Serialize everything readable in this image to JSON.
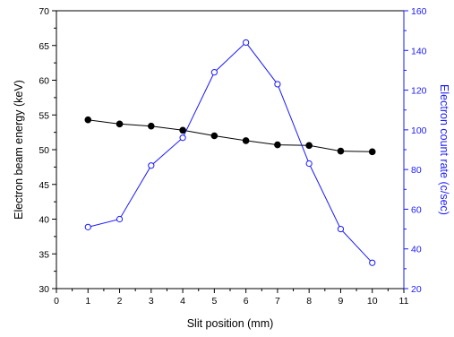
{
  "chart_data": {
    "type": "line",
    "xlabel": "Slit position (mm)",
    "ylabel_left": "Electron beam energy (keV)",
    "ylabel_right": "Electron count rate (c/sec)",
    "xlim": [
      0,
      11
    ],
    "ylim_left": [
      30,
      70
    ],
    "ylim_right": [
      20,
      160
    ],
    "x_ticks": [
      "0",
      "1",
      "2",
      "3",
      "4",
      "5",
      "6",
      "7",
      "8",
      "9",
      "10",
      "11"
    ],
    "y_left_ticks": [
      "30",
      "35",
      "40",
      "45",
      "50",
      "55",
      "60",
      "65",
      "70"
    ],
    "y_right_ticks": [
      "20",
      "40",
      "60",
      "80",
      "100",
      "120",
      "140",
      "160"
    ],
    "grid": false,
    "legend": "none",
    "series": [
      {
        "axis": "left",
        "marker": "filled-circle",
        "color": "#000000",
        "x": [
          1,
          2,
          3,
          4,
          5,
          6,
          7,
          8,
          9,
          10
        ],
        "values": [
          54.3,
          53.7,
          53.4,
          52.8,
          52.0,
          51.3,
          50.7,
          50.6,
          49.8,
          49.7
        ]
      },
      {
        "axis": "right",
        "marker": "open-circle",
        "color": "#1a1aff",
        "x": [
          1,
          2,
          3,
          4,
          5,
          6,
          7,
          8,
          9,
          10
        ],
        "values": [
          51,
          55,
          82,
          96,
          129,
          144,
          123,
          83,
          50,
          33
        ]
      }
    ]
  }
}
